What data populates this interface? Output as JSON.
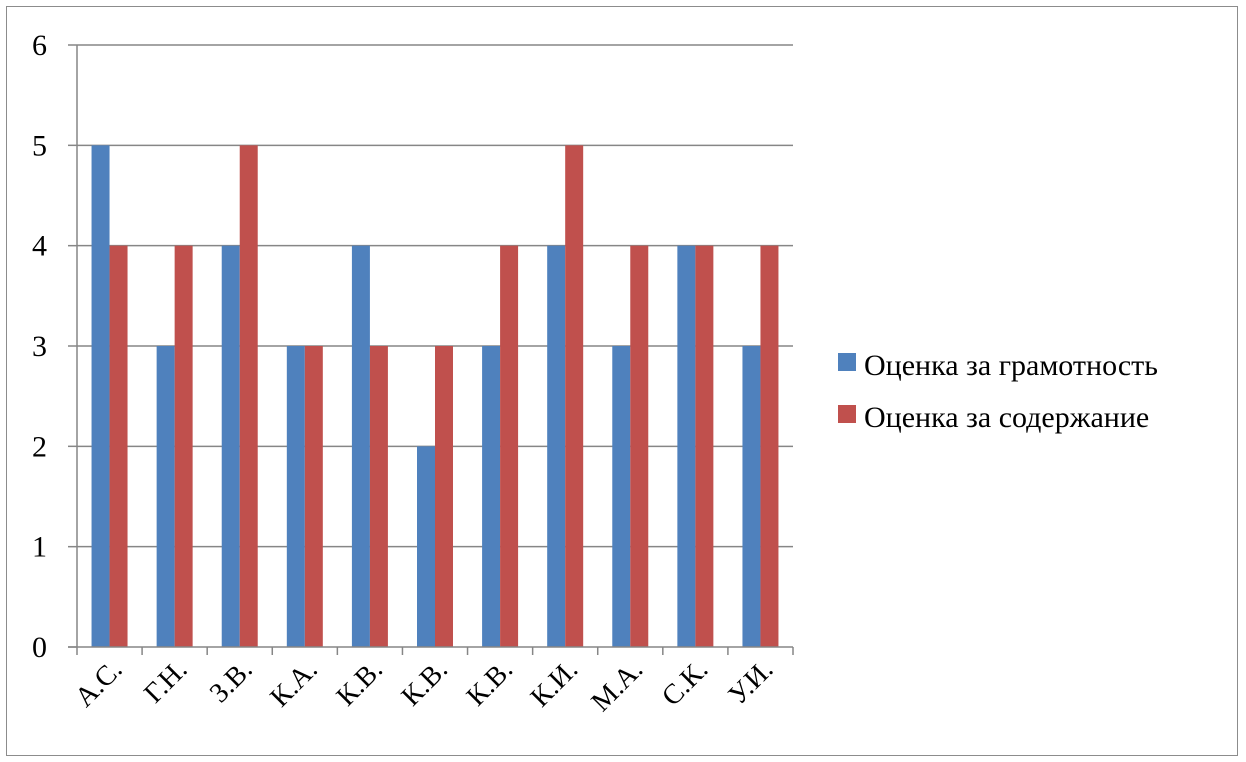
{
  "chart_data": {
    "type": "bar",
    "categories": [
      "А.С.",
      "Г.Н.",
      "З.В.",
      "К.А.",
      "К.В.",
      "К.В.",
      "К.В.",
      "К.И.",
      "М.А.",
      "С.К.",
      "У.И."
    ],
    "series": [
      {
        "name": "Оценка за грамотность",
        "color": "#4F81BD",
        "values": [
          5,
          3,
          4,
          3,
          4,
          2,
          3,
          4,
          3,
          4,
          3
        ]
      },
      {
        "name": "Оценка за содержание",
        "color": "#C0504D",
        "values": [
          4,
          4,
          5,
          3,
          3,
          3,
          4,
          5,
          4,
          4,
          4
        ]
      }
    ],
    "yticks": [
      "0",
      "1",
      "2",
      "3",
      "4",
      "5",
      "6"
    ],
    "ylim": [
      0,
      6
    ],
    "grid": true,
    "legend_position": "right",
    "title": "",
    "xlabel": "",
    "ylabel": ""
  }
}
